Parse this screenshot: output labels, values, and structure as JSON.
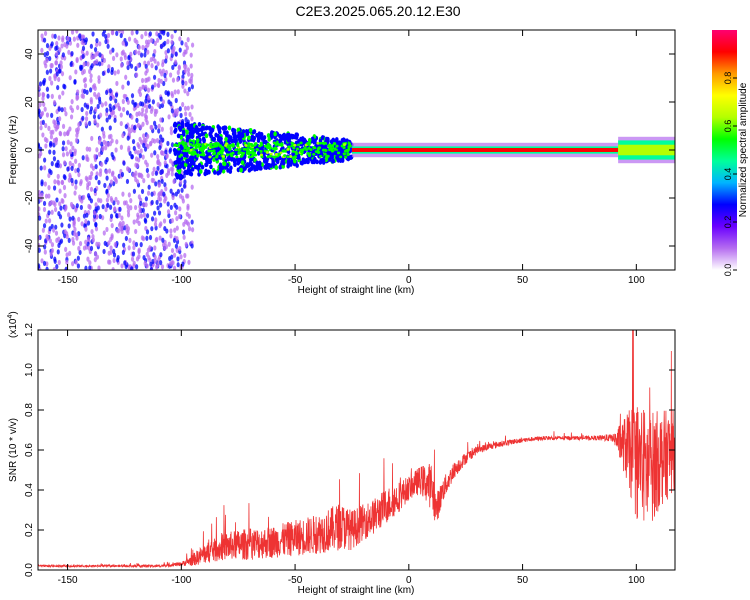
{
  "title": "C2E3.2025.065.20.12.E30",
  "chart_data": [
    {
      "type": "heatmap",
      "xlabel": "Height of straight line (km)",
      "ylabel": "Frequency (Hz)",
      "xlim": [
        -163,
        117
      ],
      "ylim": [
        -50,
        50
      ],
      "x_ticks": [
        -150,
        -100,
        -50,
        0,
        50,
        100
      ],
      "y_ticks": [
        -40,
        -20,
        0,
        20,
        40
      ],
      "colorbar": {
        "label": "Normalized spectral amplitude",
        "range": [
          0,
          1
        ],
        "ticks": [
          "0.0",
          "0.2",
          "0.4",
          "0.6",
          "0.8"
        ],
        "colors": [
          "#ffffff",
          "#b56cf0",
          "#6a00ff",
          "#0000ff",
          "#00b4ff",
          "#00ff9a",
          "#00ff00",
          "#b4ff00",
          "#ffff00",
          "#ff9a00",
          "#ff0000",
          "#ff0070"
        ]
      },
      "regions": [
        {
          "x_range": [
            -163,
            -95
          ],
          "pattern": "scattered speckle across all frequencies",
          "level": 0.1
        },
        {
          "x_range": [
            -103,
            -25
          ],
          "pattern": "dense band around 0 Hz, width narrowing with height",
          "freq_halfwidth": [
            12,
            4
          ],
          "level": 0.3
        },
        {
          "x_range": [
            -25,
            92
          ],
          "pattern": "narrow carrier line at ~0 Hz",
          "freq_halfwidth": 1.5,
          "level": 0.95
        },
        {
          "x_range": [
            92,
            117
          ],
          "pattern": "carrier with slight broadening",
          "freq_halfwidth": 4,
          "level": 0.6
        }
      ]
    },
    {
      "type": "line",
      "xlabel": "Height of straight line (km)",
      "ylabel": "SNR (10 * v/v)",
      "multiplier": "(x10",
      "multiplier_exp": "4",
      "xlim": [
        -163,
        117
      ],
      "ylim": [
        0,
        1.2
      ],
      "x_ticks": [
        -150,
        -100,
        -50,
        0,
        50,
        100
      ],
      "y_ticks": [
        "0.0",
        "0.2",
        "0.4",
        "0.6",
        "0.8",
        "1.0",
        "1.2"
      ],
      "color": "#ee3333",
      "x": [
        -163,
        -140,
        -110,
        -100,
        -95,
        -90,
        -80,
        -70,
        -60,
        -50,
        -40,
        -30,
        -25,
        -20,
        -15,
        -10,
        -5,
        0,
        5,
        10,
        12,
        15,
        20,
        25,
        30,
        40,
        50,
        60,
        70,
        80,
        90,
        95,
        100,
        105,
        110,
        117
      ],
      "y": [
        0.02,
        0.02,
        0.02,
        0.03,
        0.05,
        0.08,
        0.12,
        0.13,
        0.14,
        0.16,
        0.18,
        0.22,
        0.2,
        0.24,
        0.27,
        0.32,
        0.36,
        0.41,
        0.45,
        0.42,
        0.3,
        0.4,
        0.5,
        0.56,
        0.6,
        0.63,
        0.65,
        0.66,
        0.66,
        0.66,
        0.66,
        0.62,
        0.55,
        0.5,
        0.55,
        0.6
      ],
      "noise": [
        0.005,
        0.005,
        0.006,
        0.01,
        0.03,
        0.05,
        0.07,
        0.08,
        0.08,
        0.09,
        0.1,
        0.12,
        0.1,
        0.09,
        0.09,
        0.09,
        0.08,
        0.06,
        0.07,
        0.12,
        0.08,
        0.06,
        0.04,
        0.03,
        0.02,
        0.015,
        0.012,
        0.01,
        0.01,
        0.01,
        0.02,
        0.15,
        0.3,
        0.3,
        0.25,
        0.2
      ]
    }
  ]
}
